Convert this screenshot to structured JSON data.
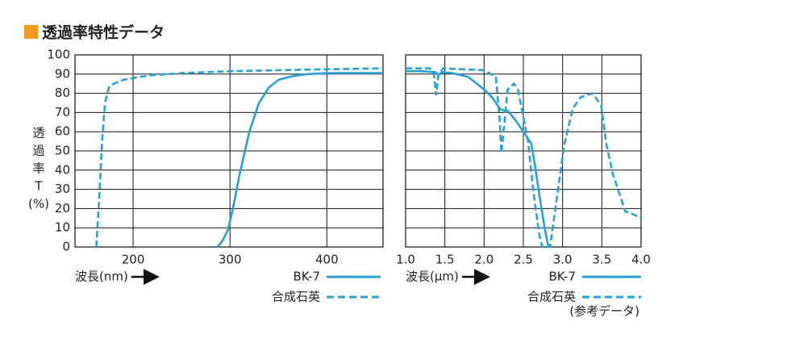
{
  "title": "透過率特性データ",
  "y_label": [
    "透",
    "過",
    "率",
    "T",
    "(%)"
  ],
  "chart_data": [
    {
      "type": "line",
      "x_label": "波長(nm)",
      "xlim": [
        140,
        458
      ],
      "xticks": [
        200,
        300,
        400
      ],
      "ylim": [
        0,
        100
      ],
      "yticks": [
        0,
        10,
        20,
        30,
        40,
        50,
        60,
        70,
        80,
        90,
        100
      ],
      "grid": true,
      "series": [
        {
          "name": "BK-7",
          "color": "#2a9fd6",
          "style": "solid",
          "x": [
            287,
            292,
            298,
            303,
            310,
            320,
            330,
            340,
            350,
            365,
            380,
            400,
            458
          ],
          "values": [
            0,
            3,
            9,
            20,
            38,
            60,
            75,
            83,
            87,
            89,
            90,
            90.5,
            90.5
          ]
        },
        {
          "name": "合成石英",
          "color": "#2a9fd6",
          "style": "dashed",
          "x": [
            162,
            165,
            168,
            171,
            175,
            180,
            190,
            200,
            220,
            250,
            300,
            350,
            400,
            458
          ],
          "values": [
            0,
            25,
            55,
            75,
            83,
            85,
            87,
            88,
            89.5,
            90.5,
            91.5,
            92,
            92.5,
            93
          ]
        }
      ]
    },
    {
      "type": "line",
      "x_label": "波長(μm)",
      "annotation": "(参考データ)",
      "xlim": [
        1,
        4
      ],
      "xticks": [
        {
          "value": 1,
          "label": "1.0"
        },
        1.5,
        {
          "value": 2,
          "label": "2.0"
        },
        2.5,
        {
          "value": 3,
          "label": "3.0"
        },
        3.5,
        {
          "value": 4,
          "label": "4.0"
        }
      ],
      "ylim": [
        0,
        100
      ],
      "yticks": [
        0,
        10,
        20,
        30,
        40,
        50,
        60,
        70,
        80,
        90,
        100
      ],
      "grid": true,
      "series": [
        {
          "name": "BK-7",
          "color": "#2a9fd6",
          "style": "solid",
          "x": [
            1.0,
            1.2,
            1.38,
            1.42,
            1.46,
            1.6,
            1.8,
            2.0,
            2.1,
            2.2,
            2.25,
            2.3,
            2.4,
            2.5,
            2.6,
            2.65,
            2.7,
            2.77,
            2.82
          ],
          "values": [
            91.5,
            91.5,
            91,
            89.5,
            91,
            90.5,
            88.5,
            82,
            78,
            72,
            71,
            71,
            66,
            60,
            54,
            42,
            28,
            10,
            0
          ]
        },
        {
          "name": "合成石英",
          "color": "#2a9fd6",
          "style": "dashed",
          "x": [
            1.0,
            1.31,
            1.36,
            1.39,
            1.42,
            1.48,
            2.0,
            2.15,
            2.2,
            2.22,
            2.26,
            2.3,
            2.38,
            2.43,
            2.49,
            2.56,
            2.63,
            2.7,
            2.74,
            2.84,
            2.92,
            3.02,
            3.13,
            3.23,
            3.38,
            3.49,
            3.56,
            3.64,
            3.8,
            3.9,
            4.0
          ],
          "values": [
            93,
            93,
            90,
            79,
            90,
            93,
            92,
            88.5,
            65.5,
            49,
            65,
            82,
            85,
            82,
            70,
            55,
            28,
            7,
            0,
            0,
            23.5,
            53,
            72,
            78,
            80,
            74,
            53,
            38,
            18.5,
            17,
            15
          ]
        }
      ]
    }
  ]
}
